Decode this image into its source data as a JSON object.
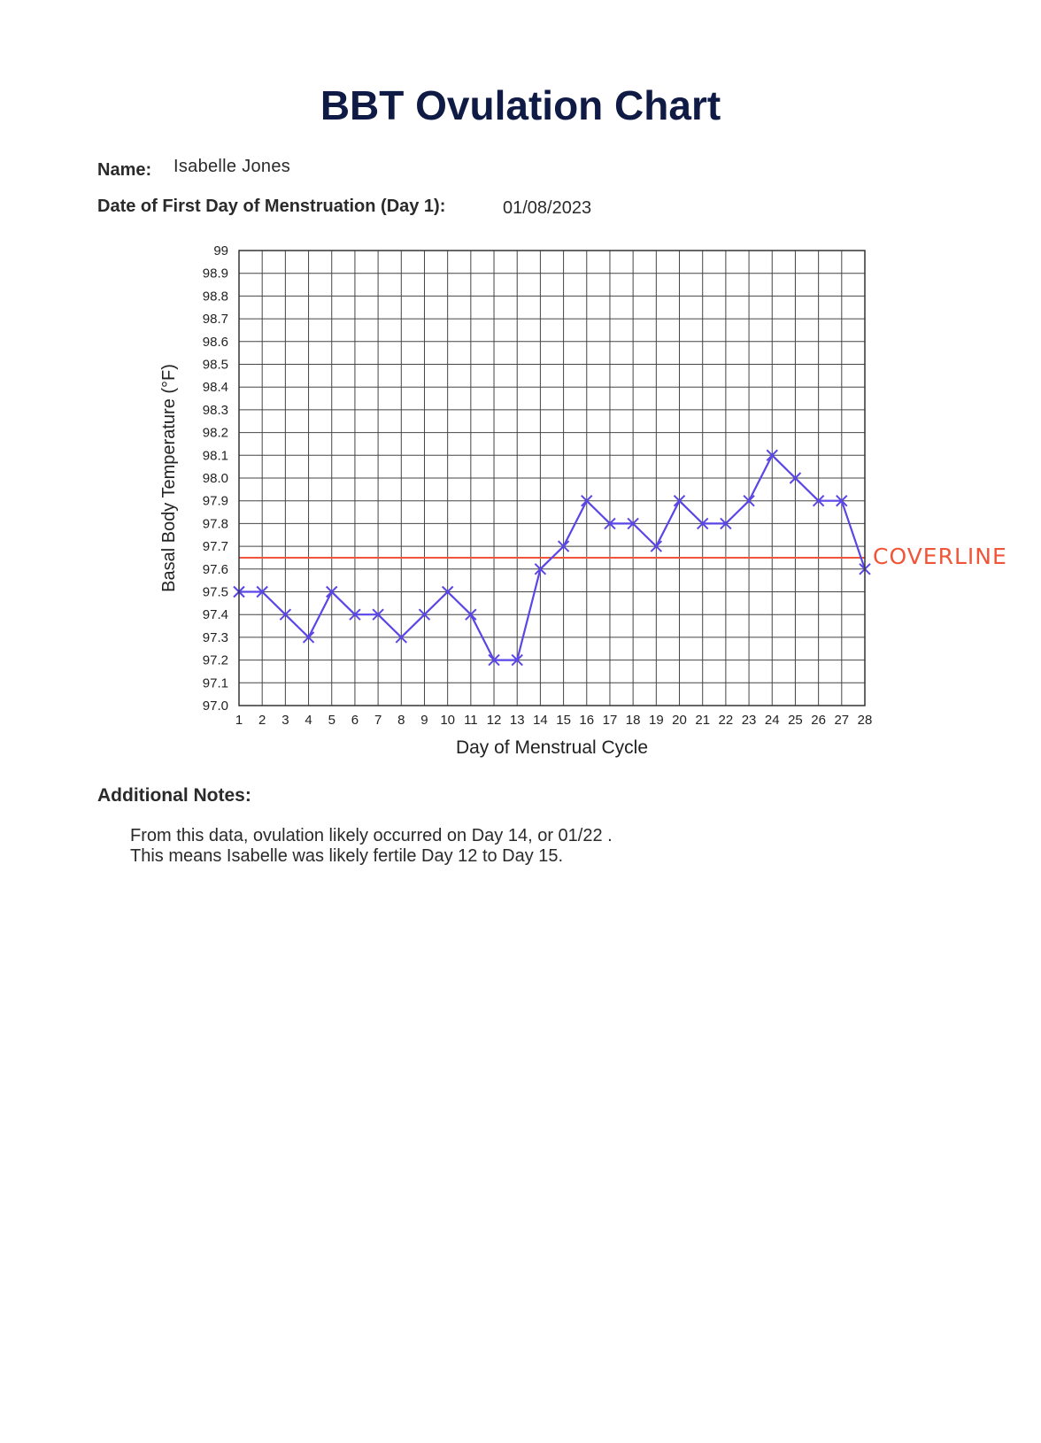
{
  "document": {
    "title": "BBT Ovulation Chart",
    "name_label": "Name:",
    "name_value": "Isabelle Jones",
    "date_label": "Date of First Day of Menstruation (Day 1):",
    "date_value": "01/08/2023"
  },
  "notes": {
    "heading": "Additional Notes:",
    "line1": "From this data, ovulation likely occurred on Day 14, or 01/22 .",
    "line2": "This means Isabelle was likely fertile Day 12 to Day 15."
  },
  "chart_data": {
    "type": "line",
    "xlabel": "Day of Menstrual Cycle",
    "ylabel": "Basal Body Temperature (°F)",
    "x": [
      1,
      2,
      3,
      4,
      5,
      6,
      7,
      8,
      9,
      10,
      11,
      12,
      13,
      14,
      15,
      16,
      17,
      18,
      19,
      20,
      21,
      22,
      23,
      24,
      25,
      26,
      27,
      28
    ],
    "series": [
      {
        "values": [
          97.5,
          97.5,
          97.4,
          97.3,
          97.5,
          97.4,
          97.4,
          97.3,
          97.4,
          97.5,
          97.4,
          97.2,
          97.2,
          97.6,
          97.7,
          97.9,
          97.8,
          97.8,
          97.7,
          97.9,
          97.8,
          97.8,
          97.9,
          98.1,
          98.0,
          97.9,
          97.9,
          97.6
        ]
      }
    ],
    "xlim": [
      1,
      28
    ],
    "ylim": [
      97.0,
      99.0
    ],
    "y_ticks": [
      "97.0",
      "97.1",
      "97.2",
      "97.3",
      "97.4",
      "97.5",
      "97.6",
      "97.7",
      "97.8",
      "97.9",
      "98.0",
      "98.1",
      "98.2",
      "98.3",
      "98.4",
      "98.5",
      "98.6",
      "98.7",
      "98.8",
      "98.9",
      "99"
    ],
    "coverline": {
      "label": "COVERLINE",
      "value": 97.65
    },
    "grid": true,
    "colors": {
      "series": "#5a46e6",
      "coverline": "#f0553a",
      "grid": "#444444"
    }
  }
}
